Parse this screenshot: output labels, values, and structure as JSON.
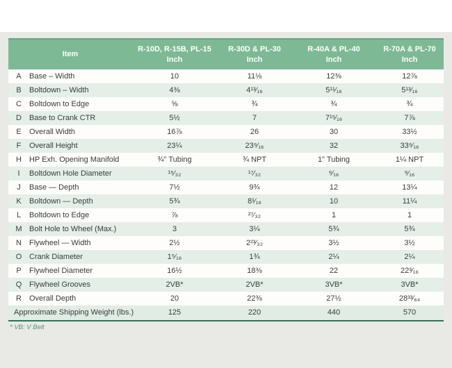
{
  "table": {
    "header": {
      "item_label": "Item",
      "columns": [
        {
          "models": "R-10D, R-15B, PL-15",
          "unit": "Inch"
        },
        {
          "models": "R-30D & PL-30",
          "unit": "Inch"
        },
        {
          "models": "R-40A & PL-40",
          "unit": "Inch"
        },
        {
          "models": "R-70A & PL-70",
          "unit": "Inch"
        }
      ]
    },
    "rows": [
      {
        "letter": "A",
        "item": "Base – Width",
        "values": [
          "10",
          "11⅛",
          "12⅜",
          "12⅞"
        ]
      },
      {
        "letter": "B",
        "item": "Boltdown – Width",
        "values": [
          "4⅜",
          "4¹³⁄₁₆",
          "5¹¹⁄₁₆",
          "5¹³⁄₁₆"
        ]
      },
      {
        "letter": "C",
        "item": "Boltdown to Edge",
        "values": [
          "⅝",
          "¾",
          "¾",
          "¾"
        ]
      },
      {
        "letter": "D",
        "item": "Base to Crank CTR",
        "values": [
          "5½",
          "7",
          "7¹⁵⁄₁₆",
          "7⅞"
        ]
      },
      {
        "letter": "E",
        "item": "Overall Width",
        "values": [
          "16⅞",
          "26",
          "30",
          "33½"
        ]
      },
      {
        "letter": "F",
        "item": "Overall Height",
        "values": [
          "23¼",
          "23⁹⁄₁₆",
          "32",
          "33⁹⁄₁₆"
        ]
      },
      {
        "letter": "H",
        "item": "HP Exh. Opening Manifold",
        "values": [
          "¾\" Tubing",
          "¾ NPT",
          "1\" Tubing",
          "1¼ NPT"
        ]
      },
      {
        "letter": "I",
        "item": "Boltdown Hole Diameter",
        "values": [
          "¹⁵⁄₃₂",
          "¹⁷⁄₃₂",
          "⁹⁄₁₆",
          "⁹⁄₁₆"
        ]
      },
      {
        "letter": "J",
        "item": "Base — Depth",
        "values": [
          "7½",
          "9¾",
          "12",
          "13¼"
        ]
      },
      {
        "letter": "K",
        "item": "Boltdown — Depth",
        "values": [
          "5¾",
          "8¹⁄₁₆",
          "10",
          "11¼"
        ]
      },
      {
        "letter": "L",
        "item": "Boltdown to Edge",
        "values": [
          "⅞",
          "²⁷⁄₃₂",
          "1",
          "1"
        ]
      },
      {
        "letter": "M",
        "item": "Bolt Hole to Wheel (Max.)",
        "values": [
          "3",
          "3¼",
          "5¾",
          "5¾"
        ]
      },
      {
        "letter": "N",
        "item": "Flywheel — Width",
        "values": [
          "2½",
          "2²³⁄₃₂",
          "3½",
          "3½"
        ]
      },
      {
        "letter": "O",
        "item": "Crank Diameter",
        "values": [
          "1⁵⁄₁₆",
          "1¾",
          "2¼",
          "2¼"
        ]
      },
      {
        "letter": "P",
        "item": "Flywheel Diameter",
        "values": [
          "16½",
          "18⅜",
          "22",
          "22³⁄₁₆"
        ]
      },
      {
        "letter": "Q",
        "item": "Flywheel Grooves",
        "values": [
          "2VB*",
          "2VB*",
          "3VB*",
          "3VB*"
        ]
      },
      {
        "letter": "R",
        "item": "Overall Depth",
        "values": [
          "20",
          "22⅜",
          "27½",
          "28³³⁄₆₄"
        ]
      }
    ],
    "footer_row": {
      "label": "Approximate Shipping Weight (lbs.)",
      "values": [
        "125",
        "220",
        "440",
        "570"
      ]
    }
  },
  "footnote": "* VB: V Belt",
  "colors": {
    "header_green": "#7db995",
    "stripe_green": "#e4efe8",
    "footer_green": "#e0ece4",
    "border_dark_green": "#2e7154",
    "footnote_green": "#57947a",
    "page_gray": "#e9e9e6"
  }
}
